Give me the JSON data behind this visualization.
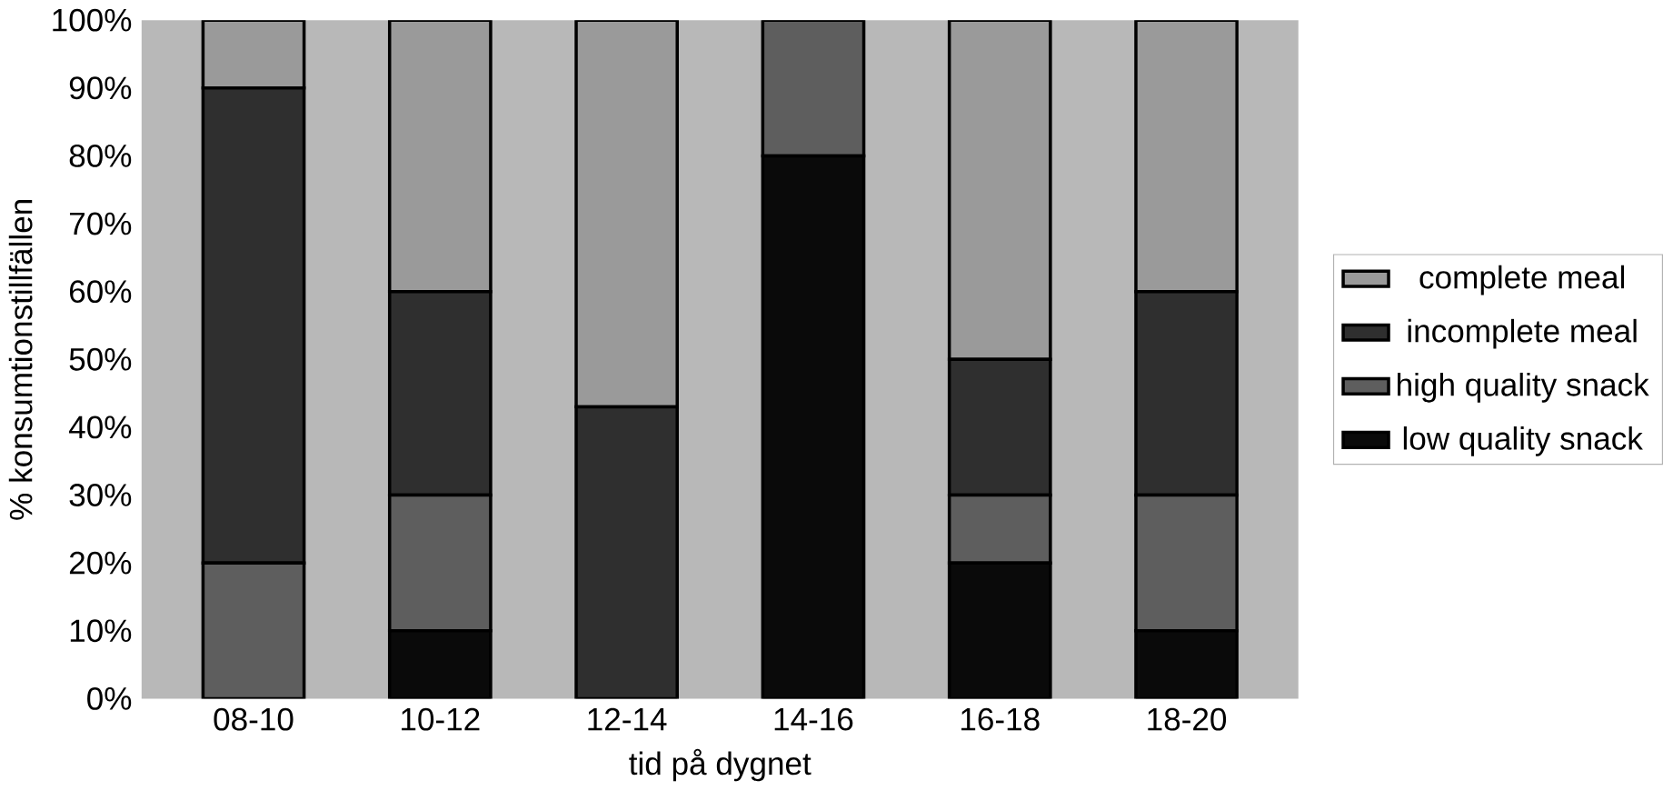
{
  "chart_data": {
    "type": "bar",
    "stacked": true,
    "xlabel": "tid på dygnet",
    "ylabel": "% konsumtionstillfällen",
    "categories": [
      "08-10",
      "10-12",
      "12-14",
      "14-16",
      "16-18",
      "18-20"
    ],
    "ylim": [
      0,
      100
    ],
    "yticks": [
      {
        "value": 0,
        "label": "0%"
      },
      {
        "value": 10,
        "label": "10%"
      },
      {
        "value": 20,
        "label": "20%"
      },
      {
        "value": 30,
        "label": "30%"
      },
      {
        "value": 40,
        "label": "40%"
      },
      {
        "value": 50,
        "label": "50%"
      },
      {
        "value": 60,
        "label": "60%"
      },
      {
        "value": 70,
        "label": "70%"
      },
      {
        "value": 80,
        "label": "80%"
      },
      {
        "value": 90,
        "label": "90%"
      },
      {
        "value": 100,
        "label": "100%"
      }
    ],
    "legend": "right",
    "grid": false,
    "series": [
      {
        "name": "low quality snack",
        "color": "#0a0a0a",
        "values": [
          0,
          10,
          0,
          80,
          20,
          10
        ]
      },
      {
        "name": "high quality snack",
        "color": "#5e5e5e",
        "values": [
          20,
          20,
          0,
          20,
          10,
          20
        ]
      },
      {
        "name": "incomplete meal",
        "color": "#2f2f2f",
        "values": [
          70,
          30,
          43,
          0,
          20,
          30
        ]
      },
      {
        "name": "complete meal",
        "color": "#9a9a9a",
        "values": [
          10,
          40,
          57,
          0,
          50,
          40
        ]
      }
    ]
  }
}
